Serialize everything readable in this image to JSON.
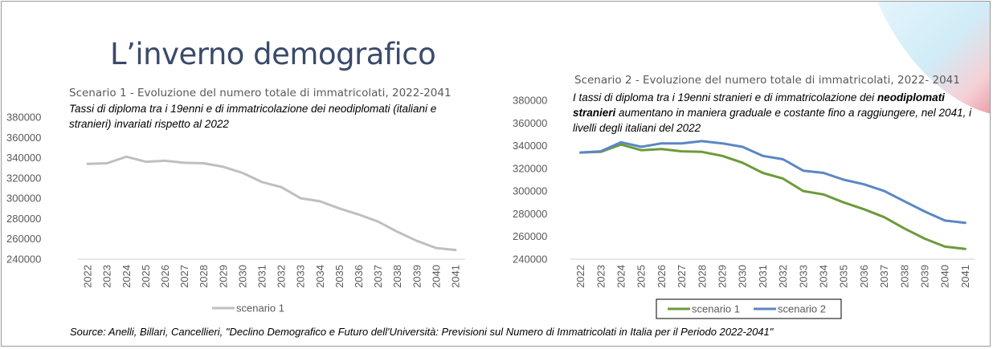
{
  "title": "L’inverno demografico",
  "source": "Source: Anelli, Billari, Cancellieri, \"Declino Demografico e Futuro dell'Università: Previsioni sul Numero di Immatricolati in Italia per il Periodo 2022-2041\"",
  "colors": {
    "title": "#3a4a6b",
    "scenario1_chart1": "#bfbfbf",
    "scenario1_chart2": "#6b9b3a",
    "scenario2": "#5b86c4"
  },
  "chart1_note": "Tassi di diploma tra i 19enni e di immatricolazione dei neodiplomati (italiani e stranieri) invariati rispetto al 2022",
  "chart2_note": {
    "part1": "I tassi di diploma tra i 19enni stranieri e di immatricolazione dei ",
    "bold": "neodiplomati stranieri",
    "part2": " aumentano in maniera graduale e costante fino a raggiungere, nel 2041, i livelli degli italiani del 2022"
  },
  "chart_data": [
    {
      "type": "line",
      "title": "Scenario 1 - Evoluzione del numero totale di immatricolati, 2022-2041",
      "x": [
        "2022",
        "2023",
        "2024",
        "2025",
        "2026",
        "2027",
        "2028",
        "2029",
        "2030",
        "2031",
        "2032",
        "2033",
        "2034",
        "2035",
        "2036",
        "2037",
        "2038",
        "2039",
        "2040",
        "2041"
      ],
      "yticks": [
        "240000",
        "260000",
        "280000",
        "300000",
        "320000",
        "340000",
        "360000",
        "380000"
      ],
      "ylim": [
        240000,
        380000
      ],
      "grid": false,
      "legend": "bottom",
      "series": [
        {
          "name": "scenario 1",
          "values": [
            334000,
            334500,
            341000,
            336000,
            337000,
            335000,
            334500,
            331000,
            325000,
            316000,
            311000,
            300000,
            297000,
            290000,
            284000,
            277000,
            267000,
            258000,
            251000,
            249000
          ]
        }
      ]
    },
    {
      "type": "line",
      "title": "Scenario 2 - Evoluzione del numero totale di immatricolati, 2022- 2041",
      "x": [
        "2022",
        "2023",
        "2024",
        "2025",
        "2026",
        "2027",
        "2028",
        "2029",
        "2030",
        "2031",
        "2032",
        "2033",
        "2034",
        "2035",
        "2036",
        "2037",
        "2038",
        "2039",
        "2040",
        "2041"
      ],
      "yticks": [
        "240000",
        "260000",
        "280000",
        "300000",
        "320000",
        "340000",
        "360000",
        "380000"
      ],
      "ylim": [
        240000,
        380000
      ],
      "grid": false,
      "legend": "bottom",
      "series": [
        {
          "name": "scenario 1",
          "values": [
            334000,
            334500,
            341000,
            336000,
            337000,
            335000,
            334500,
            331000,
            325000,
            316000,
            311000,
            300000,
            297000,
            290000,
            284000,
            277000,
            267000,
            258000,
            251000,
            249000
          ]
        },
        {
          "name": "scenario 2",
          "values": [
            334000,
            335000,
            343000,
            339000,
            342000,
            342000,
            344000,
            342000,
            339000,
            331000,
            328000,
            318000,
            316000,
            310000,
            306000,
            300000,
            291000,
            282000,
            274000,
            272000
          ]
        }
      ]
    }
  ]
}
